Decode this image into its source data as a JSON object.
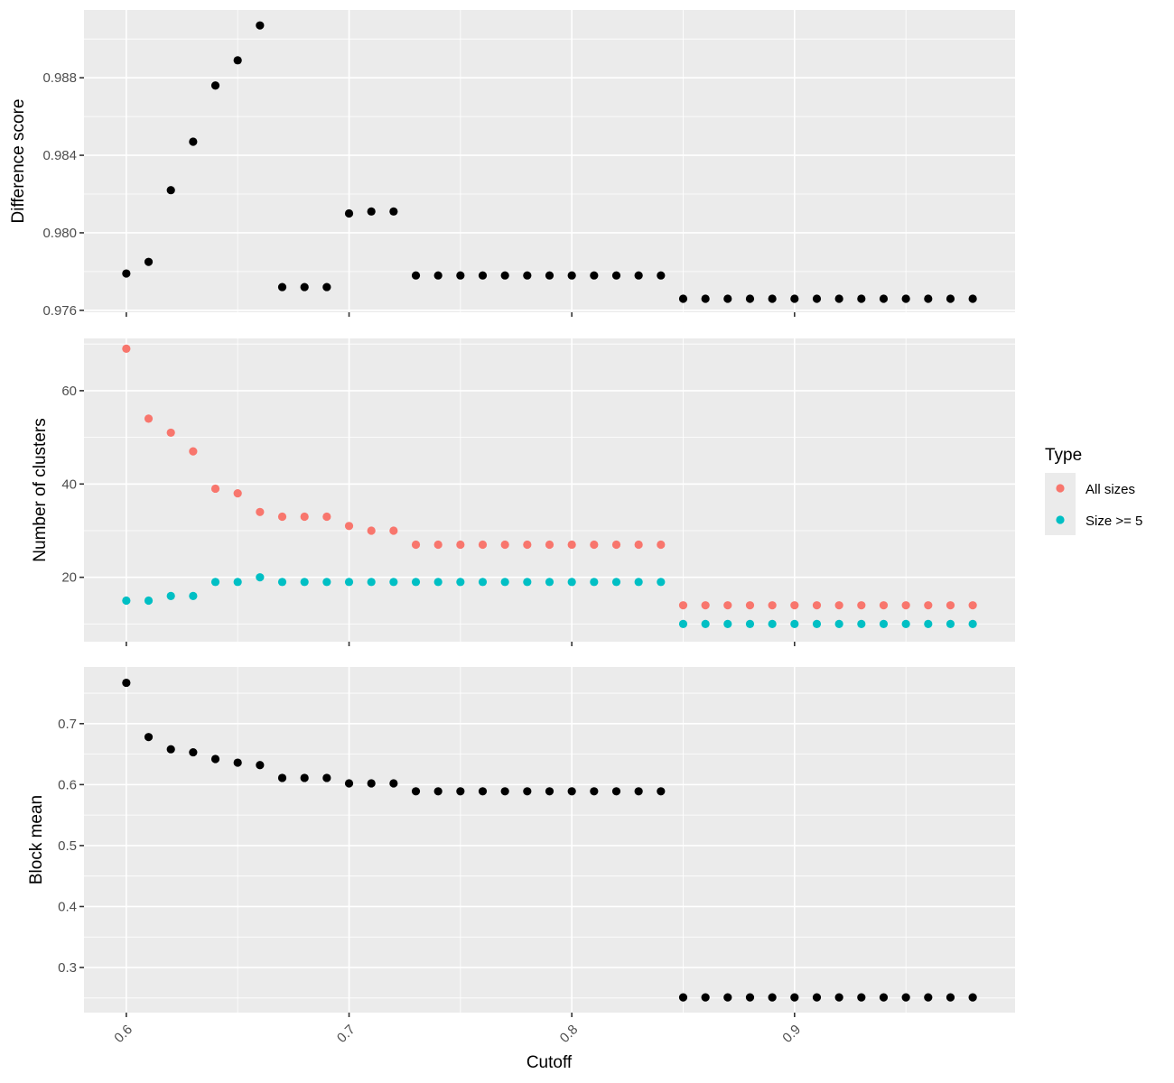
{
  "x_axis_title": "Cutoff",
  "legend": {
    "title": "Type",
    "entries": [
      {
        "label": "All sizes",
        "color": "#F8766D"
      },
      {
        "label": "Size >= 5",
        "color": "#00BFC4"
      }
    ]
  },
  "chart_data": [
    {
      "type": "scatter",
      "ylabel": "Difference score",
      "xlabel": "",
      "xlim": [
        0.581,
        0.999
      ],
      "ylim": [
        0.9759,
        0.9915
      ],
      "x_ticks": [
        0.6,
        0.7,
        0.8,
        0.9
      ],
      "x_tick_labels": [],
      "y_ticks": [
        0.976,
        0.98,
        0.984,
        0.988
      ],
      "y_tick_labels": [
        "0.976",
        "0.980",
        "0.984",
        "0.988"
      ],
      "grid": true,
      "point_color": "#000000",
      "series": [
        {
          "x": [
            0.6,
            0.61,
            0.62,
            0.63,
            0.64,
            0.65,
            0.66,
            0.67,
            0.68,
            0.69,
            0.7,
            0.71,
            0.72,
            0.73,
            0.74,
            0.75,
            0.76,
            0.77,
            0.78,
            0.79,
            0.8,
            0.81,
            0.82,
            0.83,
            0.84,
            0.85,
            0.86,
            0.87,
            0.88,
            0.89,
            0.9,
            0.91,
            0.92,
            0.93,
            0.94,
            0.95,
            0.96,
            0.97,
            0.98
          ],
          "y": [
            0.9779,
            0.9785,
            0.9822,
            0.9847,
            0.9876,
            0.9889,
            0.9907,
            0.9772,
            0.9772,
            0.9772,
            0.981,
            0.9811,
            0.9811,
            0.9778,
            0.9778,
            0.9778,
            0.9778,
            0.9778,
            0.9778,
            0.9778,
            0.9778,
            0.9778,
            0.9778,
            0.9778,
            0.9778,
            0.9766,
            0.9766,
            0.9766,
            0.9766,
            0.9766,
            0.9766,
            0.9766,
            0.9766,
            0.9766,
            0.9766,
            0.9766,
            0.9766,
            0.9766,
            0.9766
          ]
        }
      ]
    },
    {
      "type": "scatter",
      "ylabel": "Number of clusters",
      "xlabel": "",
      "xlim": [
        0.581,
        0.999
      ],
      "ylim": [
        6.2,
        71.2
      ],
      "x_ticks": [
        0.6,
        0.7,
        0.8,
        0.9
      ],
      "x_tick_labels": [],
      "y_ticks": [
        20,
        40,
        60
      ],
      "y_tick_labels": [
        "20",
        "40",
        "60"
      ],
      "grid": true,
      "series": [
        {
          "name": "All sizes",
          "color": "#F8766D",
          "x": [
            0.6,
            0.61,
            0.62,
            0.63,
            0.64,
            0.65,
            0.66,
            0.67,
            0.68,
            0.69,
            0.7,
            0.71,
            0.72,
            0.73,
            0.74,
            0.75,
            0.76,
            0.77,
            0.78,
            0.79,
            0.8,
            0.81,
            0.82,
            0.83,
            0.84,
            0.85,
            0.86,
            0.87,
            0.88,
            0.89,
            0.9,
            0.91,
            0.92,
            0.93,
            0.94,
            0.95,
            0.96,
            0.97,
            0.98
          ],
          "y": [
            69,
            54,
            51,
            47,
            39,
            38,
            34,
            33,
            33,
            33,
            31,
            30,
            30,
            27,
            27,
            27,
            27,
            27,
            27,
            27,
            27,
            27,
            27,
            27,
            27,
            14,
            14,
            14,
            14,
            14,
            14,
            14,
            14,
            14,
            14,
            14,
            14,
            14,
            14
          ]
        },
        {
          "name": "Size >= 5",
          "color": "#00BFC4",
          "x": [
            0.6,
            0.61,
            0.62,
            0.63,
            0.64,
            0.65,
            0.66,
            0.67,
            0.68,
            0.69,
            0.7,
            0.71,
            0.72,
            0.73,
            0.74,
            0.75,
            0.76,
            0.77,
            0.78,
            0.79,
            0.8,
            0.81,
            0.82,
            0.83,
            0.84,
            0.85,
            0.86,
            0.87,
            0.88,
            0.89,
            0.9,
            0.91,
            0.92,
            0.93,
            0.94,
            0.95,
            0.96,
            0.97,
            0.98
          ],
          "y": [
            15,
            15,
            16,
            16,
            19,
            19,
            20,
            19,
            19,
            19,
            19,
            19,
            19,
            19,
            19,
            19,
            19,
            19,
            19,
            19,
            19,
            19,
            19,
            19,
            19,
            10,
            10,
            10,
            10,
            10,
            10,
            10,
            10,
            10,
            10,
            10,
            10,
            10,
            10
          ]
        }
      ]
    },
    {
      "type": "scatter",
      "ylabel": "Block mean",
      "xlabel": "Cutoff",
      "xlim": [
        0.581,
        0.999
      ],
      "ylim": [
        0.226,
        0.793
      ],
      "x_ticks": [
        0.6,
        0.7,
        0.8,
        0.9
      ],
      "x_tick_labels": [
        "0.6",
        "0.7",
        "0.8",
        "0.9"
      ],
      "y_ticks": [
        0.3,
        0.4,
        0.5,
        0.6,
        0.7
      ],
      "y_tick_labels": [
        "0.3",
        "0.4",
        "0.5",
        "0.6",
        "0.7"
      ],
      "grid": true,
      "point_color": "#000000",
      "series": [
        {
          "x": [
            0.6,
            0.61,
            0.62,
            0.63,
            0.64,
            0.65,
            0.66,
            0.67,
            0.68,
            0.69,
            0.7,
            0.71,
            0.72,
            0.73,
            0.74,
            0.75,
            0.76,
            0.77,
            0.78,
            0.79,
            0.8,
            0.81,
            0.82,
            0.83,
            0.84,
            0.85,
            0.86,
            0.87,
            0.88,
            0.89,
            0.9,
            0.91,
            0.92,
            0.93,
            0.94,
            0.95,
            0.96,
            0.97,
            0.98
          ],
          "y": [
            0.767,
            0.678,
            0.658,
            0.653,
            0.642,
            0.636,
            0.632,
            0.611,
            0.611,
            0.611,
            0.602,
            0.602,
            0.602,
            0.589,
            0.589,
            0.589,
            0.589,
            0.589,
            0.589,
            0.589,
            0.589,
            0.589,
            0.589,
            0.589,
            0.589,
            0.251,
            0.251,
            0.251,
            0.251,
            0.251,
            0.251,
            0.251,
            0.251,
            0.251,
            0.251,
            0.251,
            0.251,
            0.251,
            0.251
          ]
        }
      ]
    }
  ]
}
